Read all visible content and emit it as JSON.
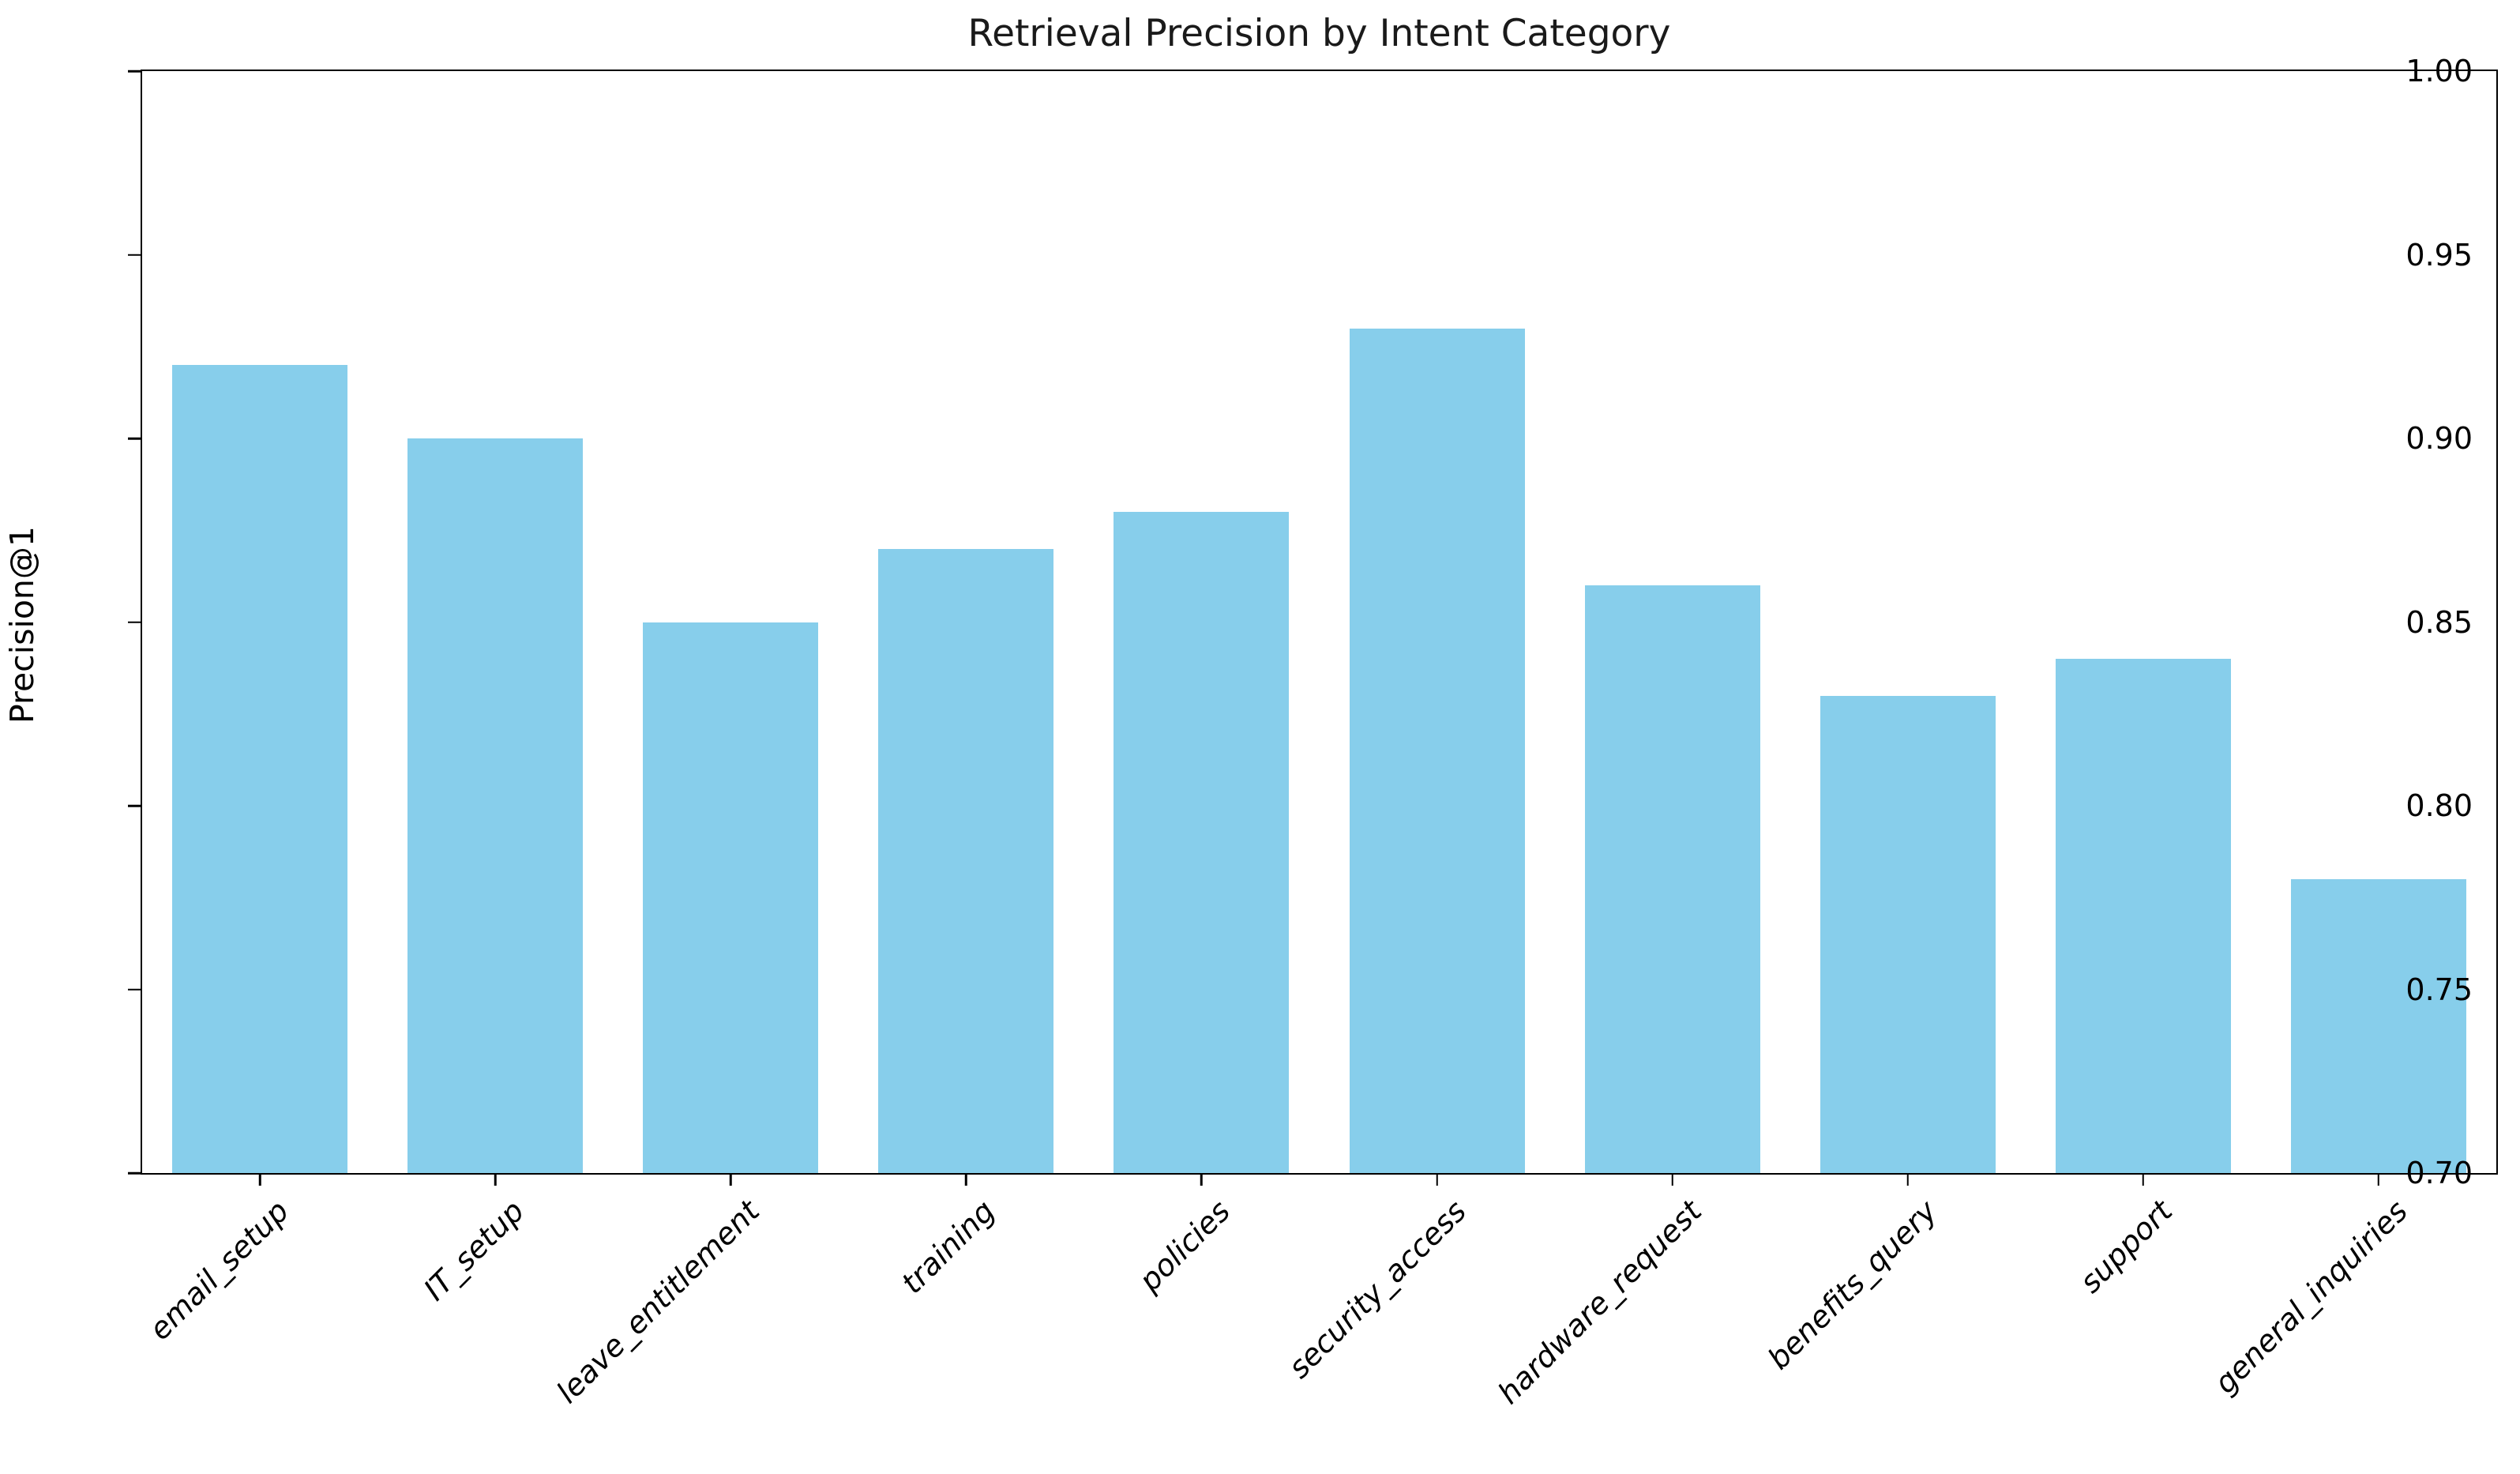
{
  "chart_data": {
    "type": "bar",
    "title": "Retrieval Precision by Intent Category",
    "xlabel": "",
    "ylabel": "Precision@1",
    "categories": [
      "email_setup",
      "IT_setup",
      "leave_entitlement",
      "training",
      "policies",
      "security_access",
      "hardware_request",
      "benefits_query",
      "support",
      "general_inquiries"
    ],
    "values": [
      0.92,
      0.9,
      0.85,
      0.87,
      0.88,
      0.93,
      0.86,
      0.83,
      0.84,
      0.78
    ],
    "ylim": [
      0.7,
      1.0
    ],
    "yticks": [
      0.7,
      0.75,
      0.8,
      0.85,
      0.9,
      0.95,
      1.0
    ],
    "ytick_labels": [
      "0.70",
      "0.75",
      "0.80",
      "0.85",
      "0.90",
      "0.95",
      "1.00"
    ],
    "bar_color": "#87CEEB",
    "background_color": "#ffffff",
    "spine_color": "#000000",
    "grid": false,
    "legend_position": "none"
  }
}
